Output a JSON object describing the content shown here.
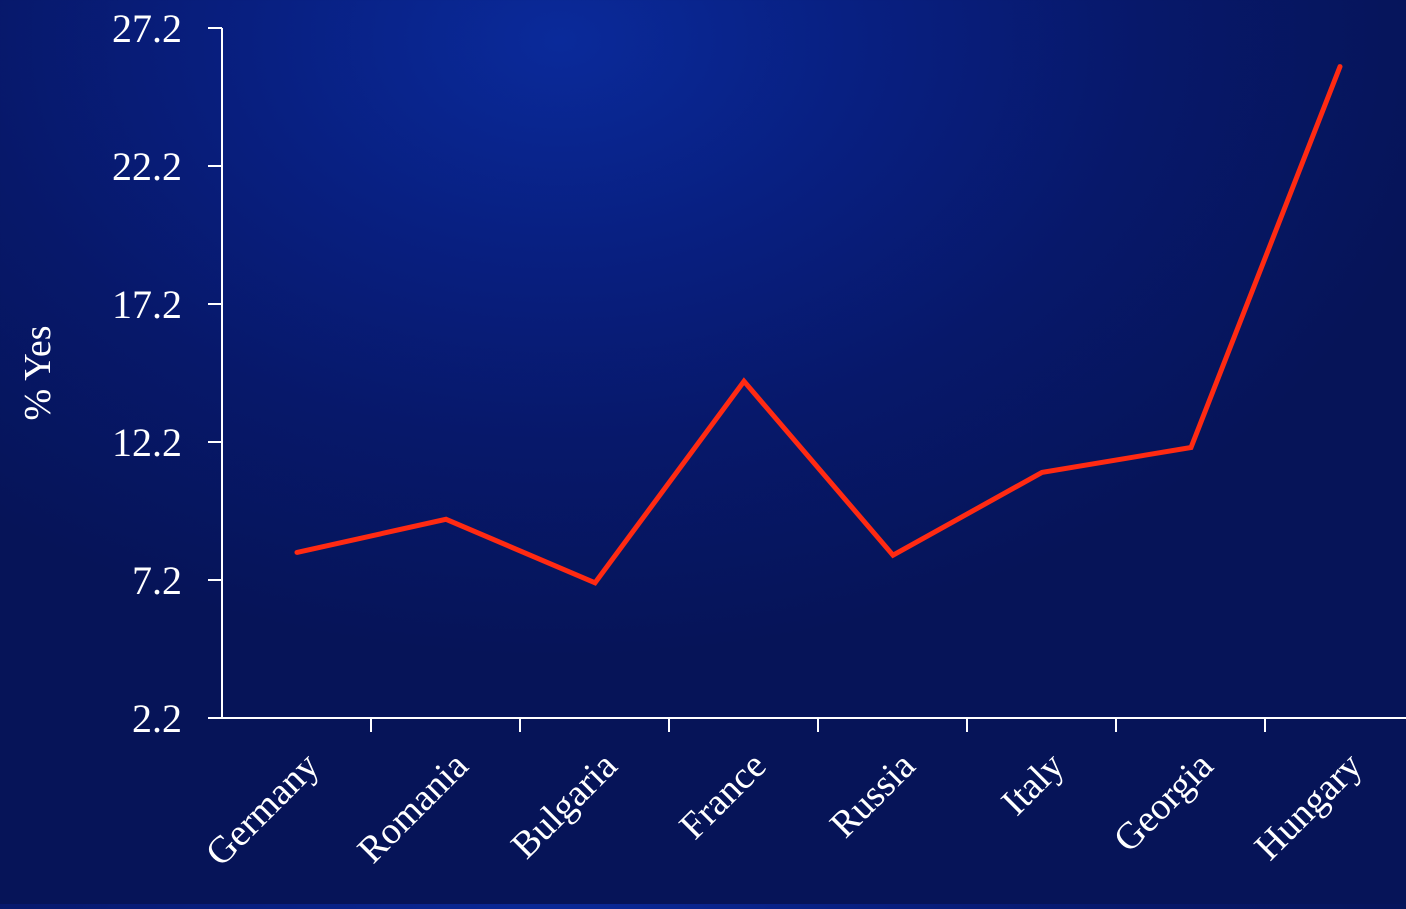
{
  "chart_data": {
    "type": "line",
    "categories": [
      "Germany",
      "Romania",
      "Bulgaria",
      "France",
      "Russia",
      "Italy",
      "Georgia",
      "Hungary"
    ],
    "series": [
      {
        "values": [
          8.2,
          9.4,
          7.1,
          14.4,
          8.1,
          11.1,
          12.0,
          25.8
        ],
        "color": "#ff2a12"
      }
    ],
    "title": "",
    "xlabel": "",
    "ylabel": "% Yes",
    "yticks": [
      "2.2",
      "7.2",
      "12.2",
      "17.2",
      "22.2",
      "27.2"
    ],
    "ylim": [
      2.2,
      27.2
    ],
    "grid": false,
    "legend": "none"
  },
  "colors": {
    "axis": "#ffffff",
    "text": "#ffffff",
    "line": "#ff2a12"
  }
}
